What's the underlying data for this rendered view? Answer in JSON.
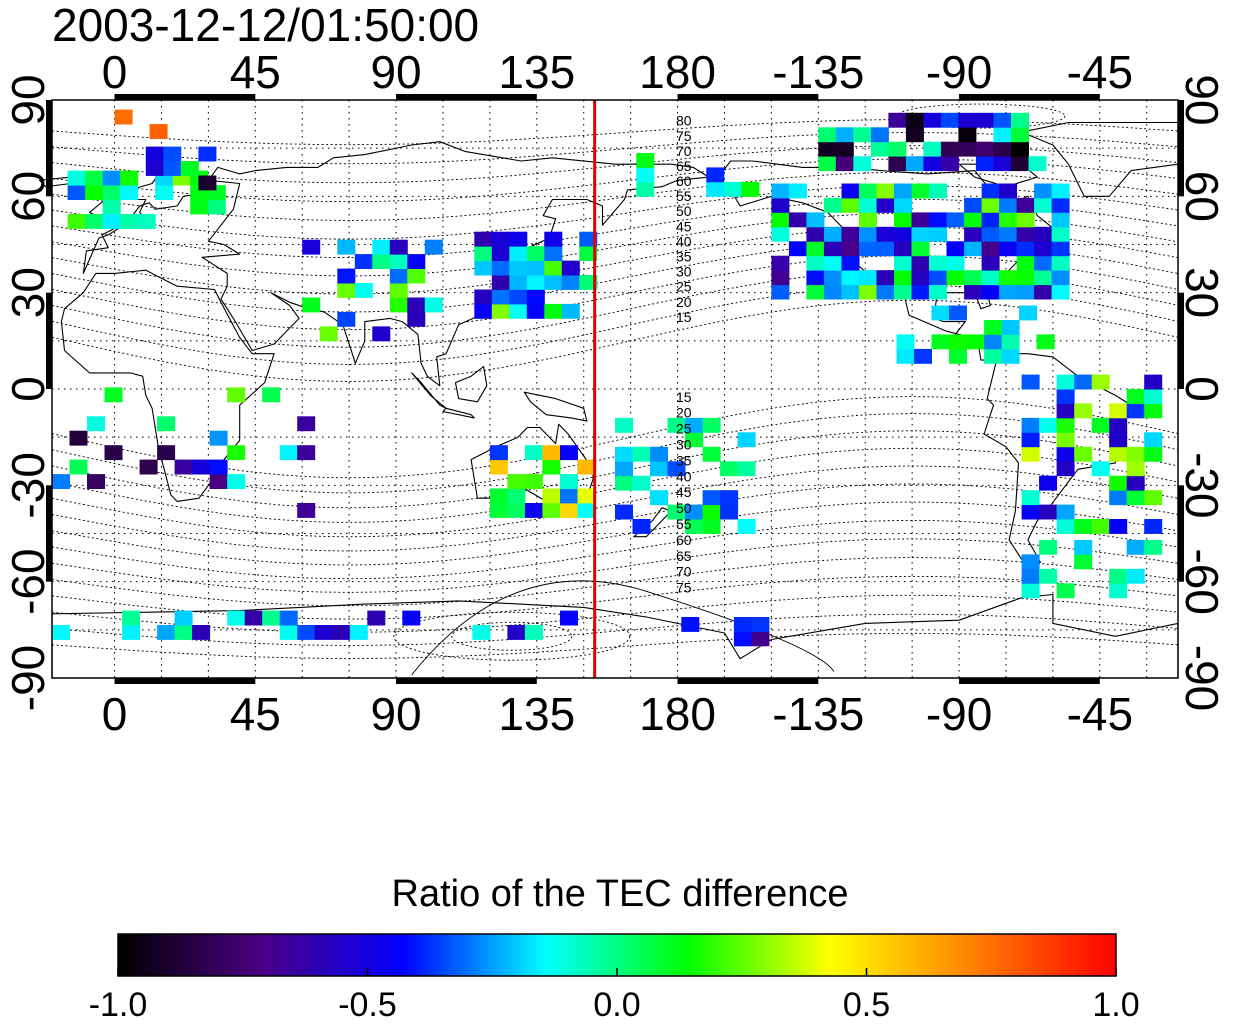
{
  "timestamp": "2003-12-12/01:50:00",
  "map": {
    "lon_ticks": [
      "0",
      "45",
      "90",
      "135",
      "180",
      "-135",
      "-90",
      "-45"
    ],
    "lat_ticks": [
      "90",
      "60",
      "30",
      "0",
      "-30",
      "-60",
      "-90"
    ],
    "lon_extent": [
      -20,
      340
    ],
    "lat_extent": [
      -90,
      90
    ],
    "grid": "dotted",
    "marker_longitude": 153.5,
    "marker_color": "#e00000",
    "contour_labels": {
      "north": [
        "80",
        "75",
        "70",
        "65",
        "60",
        "55",
        "50",
        "45",
        "40",
        "35",
        "30",
        "25",
        "20",
        "15"
      ],
      "south": [
        "15",
        "20",
        "25",
        "30",
        "35",
        "40",
        "45",
        "50",
        "55",
        "60",
        "65",
        "70",
        "75"
      ]
    }
  },
  "colorbar": {
    "title": "Ratio of the TEC difference",
    "tick_labels": [
      "-1.0",
      "-0.5",
      "0.0",
      "0.5",
      "1.0"
    ],
    "range": [
      -1.0,
      1.0
    ],
    "colors": [
      "#000000",
      "#4b0082",
      "#0000ff",
      "#00ffff",
      "#00ff00",
      "#ffff00",
      "#ff8000",
      "#ff0000"
    ]
  }
}
